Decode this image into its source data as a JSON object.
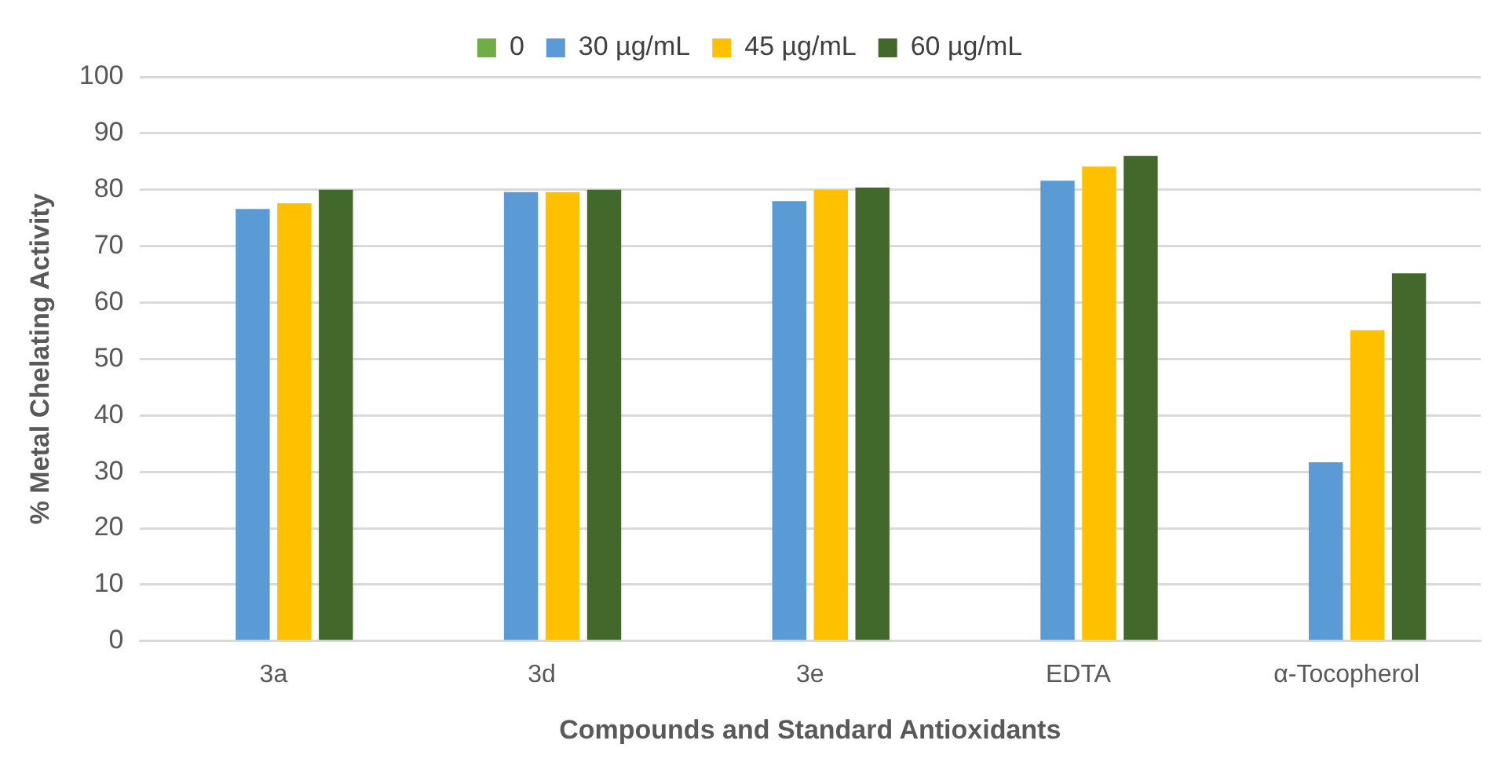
{
  "chart_data": {
    "type": "bar",
    "xlabel": "Compounds and Standard Antioxidants",
    "ylabel": "% Metal Chelating Activity",
    "categories": [
      "3a",
      "3d",
      "3e",
      "EDTA",
      "α-Tocopherol"
    ],
    "series": [
      {
        "name": "0",
        "color": "#70ad47",
        "values": [
          0,
          0,
          0,
          0,
          0
        ]
      },
      {
        "name": "30 µg/mL",
        "color": "#5b9bd5",
        "values": [
          76.6,
          79.6,
          78.0,
          81.6,
          31.7
        ]
      },
      {
        "name": "45 µg/mL",
        "color": "#ffc000",
        "values": [
          77.6,
          79.6,
          80.0,
          84.1,
          55.1
        ]
      },
      {
        "name": "60 µg/mL",
        "color": "#43682b",
        "values": [
          80.0,
          80.0,
          80.4,
          86.0,
          65.2
        ]
      }
    ],
    "ylim": [
      0,
      100
    ],
    "yticks": [
      0,
      10,
      20,
      30,
      40,
      50,
      60,
      70,
      80,
      90,
      100
    ],
    "grid": "y",
    "legend": "top"
  }
}
